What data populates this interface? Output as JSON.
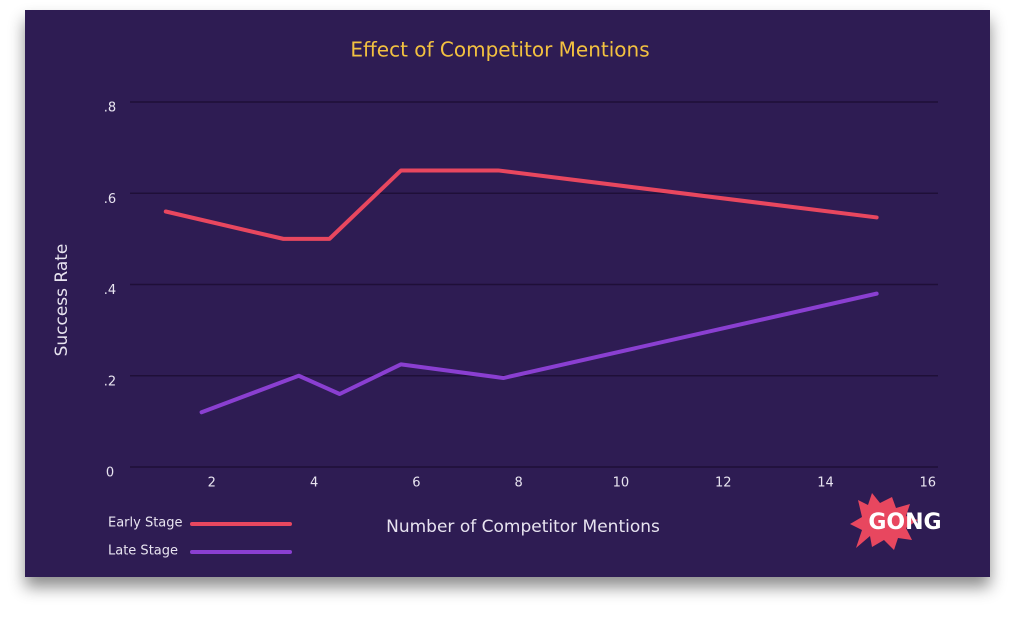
{
  "chart_data": {
    "type": "line",
    "title": "Effect of Competitor Mentions",
    "x_label": "Number of Competitor Mentions",
    "y_label": "Success Rate",
    "xlim": [
      0.4,
      16.2
    ],
    "xticks": [
      2,
      4,
      6,
      8,
      10,
      12,
      14,
      16
    ],
    "ylim": [
      0,
      0.8
    ],
    "yticks": [
      0,
      {
        "value": 0.2,
        "label": ".2"
      },
      {
        "value": 0.4,
        "label": ".4"
      },
      {
        "value": 0.6,
        "label": ".6"
      },
      {
        "value": 0.8,
        "label": ".8"
      }
    ],
    "grid": true,
    "legend": "bottom-left",
    "logo": "GONG",
    "series": [
      {
        "name": "Early Stage",
        "color": "#e8475f",
        "x": [
          1.1,
          3.4,
          4.3,
          5.7,
          7.6,
          15
        ],
        "values": [
          0.56,
          0.5,
          0.5,
          0.65,
          0.65,
          0.547
        ]
      },
      {
        "name": "Late Stage",
        "color": "#8a3fd1",
        "x": [
          1.8,
          3.7,
          4.5,
          5.7,
          7.7,
          15
        ],
        "values": [
          0.12,
          0.2,
          0.16,
          0.225,
          0.195,
          0.38
        ]
      }
    ]
  }
}
